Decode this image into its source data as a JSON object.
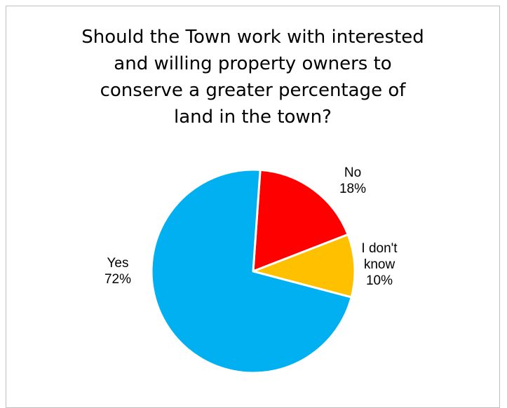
{
  "chart_data": {
    "type": "pie",
    "title_lines": [
      "Should the Town work with interested",
      "and willing property owners to",
      "conserve a greater percentage of",
      "land in the town?"
    ],
    "slices": [
      {
        "name": "No",
        "value": 18,
        "color": "#ff0000",
        "label_lines": [
          "No",
          "18%"
        ]
      },
      {
        "name": "I don't know",
        "value": 10,
        "color": "#ffc000",
        "label_lines": [
          "I don't",
          "know",
          "10%"
        ]
      },
      {
        "name": "Yes",
        "value": 72,
        "color": "#00b0f0",
        "label_lines": [
          "Yes",
          "72%"
        ]
      }
    ]
  }
}
